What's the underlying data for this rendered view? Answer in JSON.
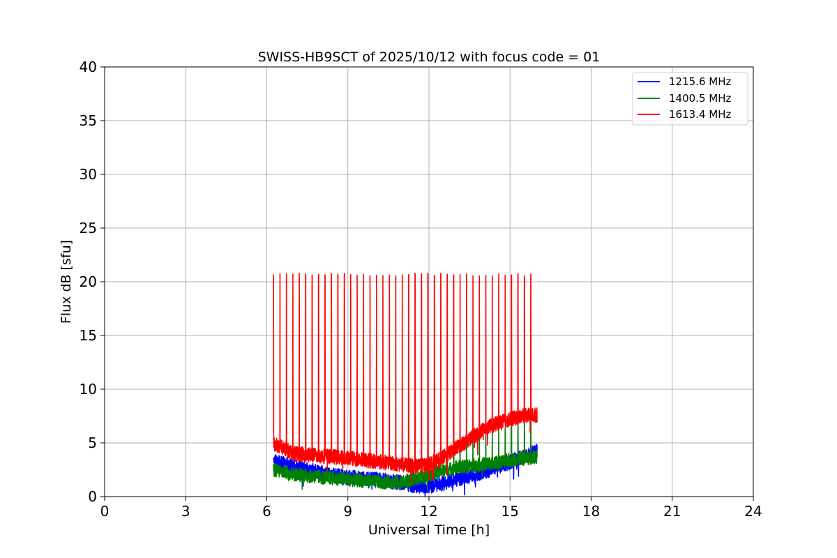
{
  "chart_data": {
    "type": "line",
    "title": "SWISS-HB9SCT of 2025/10/12 with focus code = 01",
    "xlabel": "Universal Time [h]",
    "ylabel": "Flux dB [sfu]",
    "xlim": [
      0,
      24
    ],
    "ylim": [
      0,
      40
    ],
    "xticks": [
      0,
      3,
      6,
      9,
      12,
      15,
      18,
      21,
      24
    ],
    "yticks": [
      0,
      5,
      10,
      15,
      20,
      25,
      30,
      35,
      40
    ],
    "grid": true,
    "legend_position": "top-right",
    "time_range": [
      6.25,
      16.0
    ],
    "series": [
      {
        "name": "1215.6 MHz",
        "color": "#0000ff",
        "x": [
          6.25,
          7.0,
          8.0,
          9.0,
          10.0,
          11.0,
          11.5,
          12.0,
          12.5,
          13.0,
          14.0,
          15.0,
          15.5,
          16.0
        ],
        "values": [
          3.3,
          2.8,
          2.2,
          1.8,
          1.6,
          1.3,
          1.0,
          1.0,
          1.2,
          1.6,
          2.3,
          3.2,
          3.8,
          4.2
        ]
      },
      {
        "name": "1400.5 MHz",
        "color": "#008000",
        "x": [
          6.25,
          7.0,
          8.0,
          9.0,
          10.0,
          11.0,
          12.0,
          12.5,
          13.0,
          14.0,
          15.0,
          16.0
        ],
        "values": [
          2.5,
          2.1,
          1.8,
          1.6,
          1.4,
          1.3,
          2.0,
          2.4,
          2.7,
          3.0,
          3.4,
          3.7
        ]
      },
      {
        "name": "1613.4 MHz",
        "color": "#ff0000",
        "x": [
          6.25,
          7.0,
          8.0,
          9.0,
          10.0,
          11.0,
          11.5,
          12.0,
          12.5,
          13.0,
          14.0,
          14.5,
          15.0,
          15.5,
          16.0
        ],
        "values": [
          5.0,
          4.0,
          3.8,
          3.6,
          3.3,
          3.0,
          2.8,
          3.0,
          3.6,
          4.5,
          6.2,
          6.8,
          7.2,
          7.5,
          7.6
        ],
        "spike_peak": 20.8
      }
    ]
  }
}
